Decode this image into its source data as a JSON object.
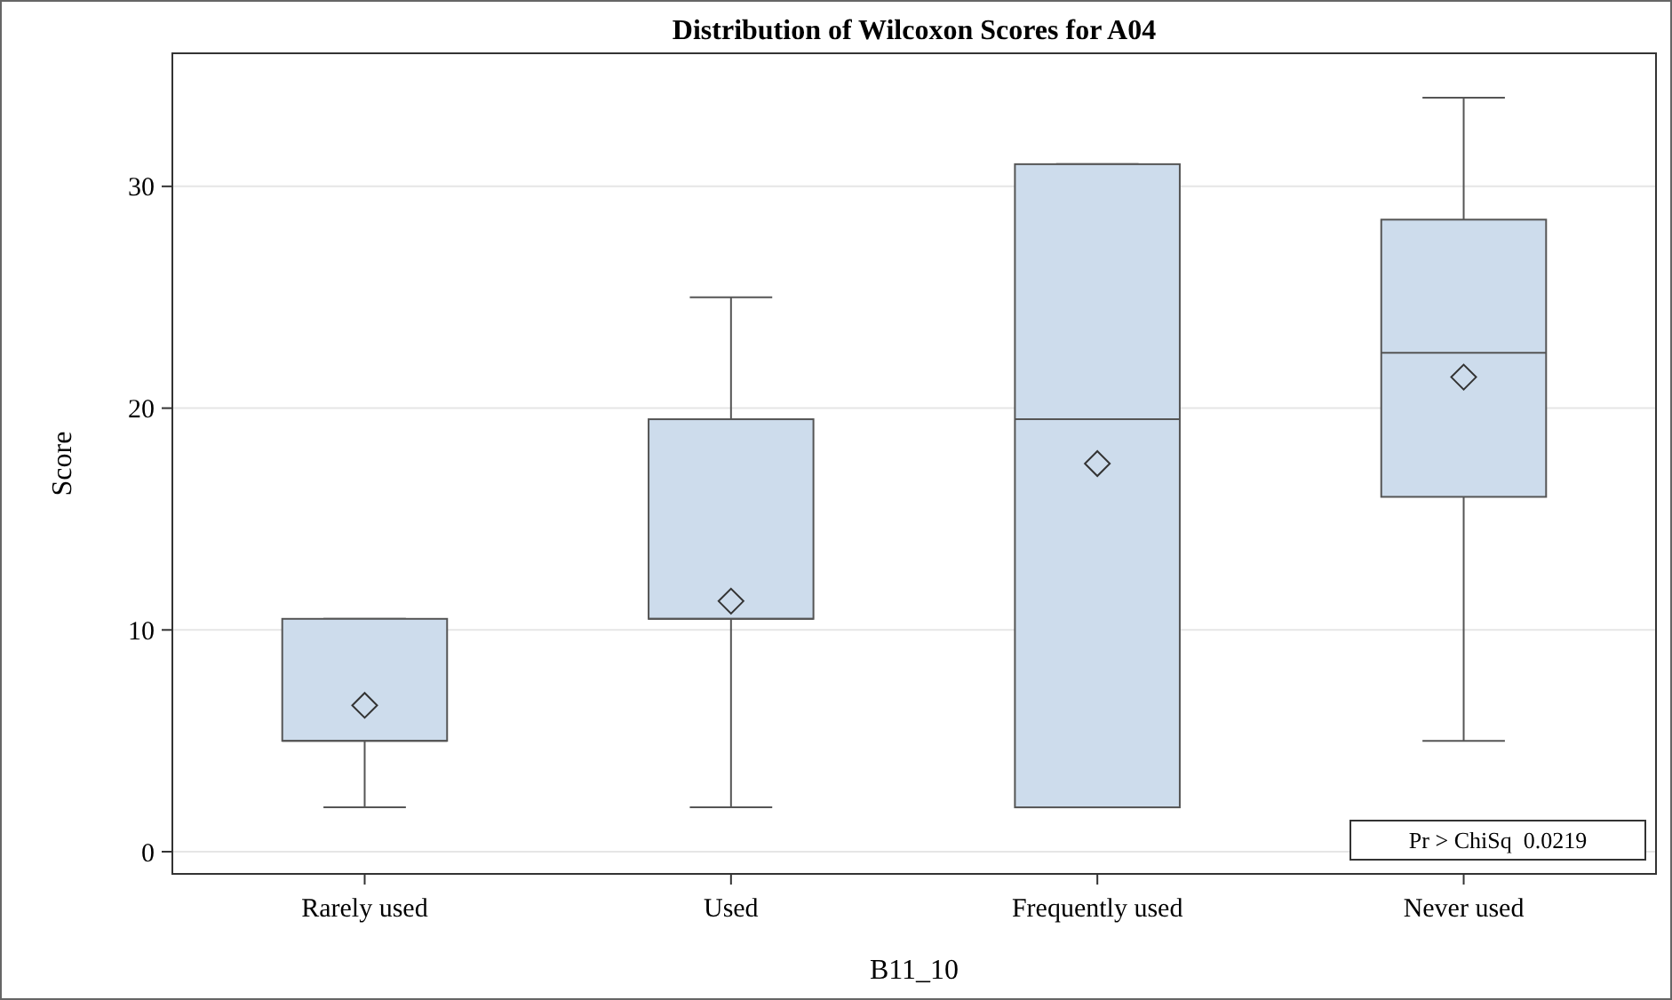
{
  "chart_data": {
    "type": "box",
    "title": "Distribution of Wilcoxon Scores for A04",
    "xlabel": "B11_10",
    "ylabel": "Score",
    "categories": [
      "Rarely used",
      "Used",
      "Frequently used",
      "Never used"
    ],
    "color": "#cddcec",
    "boxes": [
      {
        "low": 2,
        "q1": 5,
        "median": 5,
        "q3": 10.5,
        "high": 10.5,
        "mean": 6.6
      },
      {
        "low": 2,
        "q1": 10.5,
        "median": 10.5,
        "q3": 19.5,
        "high": 25,
        "mean": 11.3
      },
      {
        "low": 2,
        "q1": 2,
        "median": 19.5,
        "q3": 31,
        "high": 31,
        "mean": 17.5
      },
      {
        "low": 5,
        "q1": 16,
        "median": 22.5,
        "q3": 28.5,
        "high": 34,
        "mean": 21.4
      }
    ],
    "ylim": [
      -1,
      36
    ],
    "yticks": [
      0,
      10,
      20,
      30
    ],
    "grid": "y",
    "marker": "diamond",
    "annotations": [
      "Pr > ChiSq  0.0219"
    ]
  }
}
